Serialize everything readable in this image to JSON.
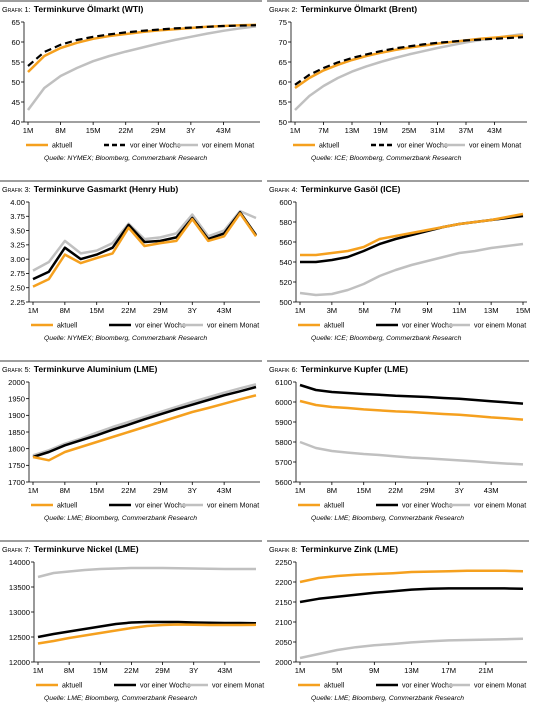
{
  "colors": {
    "aktuell": "#f5a01e",
    "vor_einer_woche": "#000000",
    "vor_einem_monat": "#c0c0c0",
    "rule": "#7f7f7f"
  },
  "charts": [
    {
      "id": "g1",
      "label": "Grafik 1:",
      "title": "Terminkurve Ölmarkt (WTI)",
      "source": "Quelle: NYMEX; Bloomberg, Commerzbank Research",
      "ylim": [
        40,
        65
      ],
      "yticks": [
        "40",
        "45",
        "50",
        "55",
        "60",
        "65"
      ],
      "xticks": [
        "1M",
        "8M",
        "15M",
        "22M",
        "29M",
        "3Y",
        "43M"
      ],
      "legend": [
        "aktuell",
        "vor einer Woche",
        "vor einem Monat"
      ]
    },
    {
      "id": "g2",
      "label": "Grafik 2:",
      "title": "Terminkurve Ölmarkt (Brent)",
      "source": "Quelle: ICE; Bloomberg, Commerzbank Research",
      "ylim": [
        50,
        75
      ],
      "yticks": [
        "50",
        "55",
        "60",
        "65",
        "70",
        "75"
      ],
      "xticks": [
        "1M",
        "7M",
        "13M",
        "19M",
        "25M",
        "31M",
        "37M",
        "43M"
      ],
      "legend": [
        "aktuell",
        "vor einer Woche",
        "vor einem Monat"
      ]
    },
    {
      "id": "g3",
      "label": "Grafik 3:",
      "title": "Terminkurve Gasmarkt (Henry Hub)",
      "source": "Quelle: NYMEX; Bloomberg, Commerzbank Research",
      "ylim": [
        2.25,
        4.0
      ],
      "yticks": [
        "2.25",
        "2.50",
        "2.75",
        "3.00",
        "3.25",
        "3.50",
        "3.75",
        "4.00"
      ],
      "xticks": [
        "1M",
        "8M",
        "15M",
        "22M",
        "29M",
        "3Y",
        "43M"
      ],
      "legend": [
        "aktuell",
        "vor einer Woche",
        "vor einem Monat"
      ]
    },
    {
      "id": "g4",
      "label": "Grafik 4:",
      "title": "Terminkurve Gasöl (ICE)",
      "source": "Quelle: ICE; Bloomberg, Commerzbank Research",
      "ylim": [
        500,
        600
      ],
      "yticks": [
        "500",
        "520",
        "540",
        "560",
        "580",
        "600"
      ],
      "xticks": [
        "1M",
        "3M",
        "5M",
        "7M",
        "9M",
        "11M",
        "13M",
        "15M"
      ],
      "legend": [
        "aktuell",
        "vor einer Woche",
        "vor einem Monat"
      ]
    },
    {
      "id": "g5",
      "label": "Grafik 5:",
      "title": "Terminkurve Aluminium (LME)",
      "source": "Quelle: LME; Bloomberg, Commerzbank Research",
      "ylim": [
        1700,
        2000
      ],
      "yticks": [
        "1700",
        "1750",
        "1800",
        "1850",
        "1900",
        "1950",
        "2000"
      ],
      "xticks": [
        "1M",
        "8M",
        "15M",
        "22M",
        "29M",
        "3Y",
        "43M"
      ],
      "legend": [
        "aktuell",
        "vor einer Woche",
        "vor einem Monat"
      ]
    },
    {
      "id": "g6",
      "label": "Grafik 6:",
      "title": "Terminkurve Kupfer (LME)",
      "source": "Quelle: LME; Bloomberg, Commerzbank Research",
      "ylim": [
        5600,
        6100
      ],
      "yticks": [
        "5600",
        "5700",
        "5800",
        "5900",
        "6000",
        "6100"
      ],
      "xticks": [
        "1M",
        "8M",
        "15M",
        "22M",
        "29M",
        "3Y",
        "43M"
      ],
      "legend": [
        "aktuell",
        "vor einer Woche",
        "vor einem Monat"
      ]
    },
    {
      "id": "g7",
      "label": "Grafik 7:",
      "title": "Terminkurve Nickel (LME)",
      "source": "Quelle: LME; Bloomberg, Commerzbank Research",
      "ylim": [
        12000,
        14000
      ],
      "yticks": [
        "12000",
        "12500",
        "13000",
        "13500",
        "14000"
      ],
      "xticks": [
        "1M",
        "8M",
        "15M",
        "22M",
        "29M",
        "3Y",
        "43M"
      ],
      "legend": [
        "aktuell",
        "vor einer Woche",
        "vor einem Monat"
      ]
    },
    {
      "id": "g8",
      "label": "Grafik 8:",
      "title": "Terminkurve Zink (LME)",
      "source": "Quelle: LME; Bloomberg, Commerzbank Research",
      "ylim": [
        2000,
        2250
      ],
      "yticks": [
        "2000",
        "2050",
        "2100",
        "2150",
        "2200",
        "2250"
      ],
      "xticks": [
        "1M",
        "5M",
        "9M",
        "13M",
        "17M",
        "21M"
      ],
      "legend": [
        "aktuell",
        "vor einer Woche",
        "vor einem Monat"
      ]
    }
  ],
  "chart_data": [
    {
      "type": "line",
      "title": "Grafik 1: Terminkurve Ölmarkt (WTI)",
      "ylim": [
        40,
        65
      ],
      "x": [
        "1M",
        "4M",
        "8M",
        "11M",
        "15M",
        "18M",
        "22M",
        "25M",
        "29M",
        "32M",
        "3Y",
        "39M",
        "43M",
        "46M",
        "49M"
      ],
      "series": [
        {
          "name": "aktuell",
          "values": [
            52.5,
            56.5,
            58.5,
            59.8,
            60.8,
            61.5,
            62.0,
            62.5,
            62.9,
            63.2,
            63.5,
            63.8,
            64.0,
            64.2,
            64.3
          ]
        },
        {
          "name": "vor einer Woche",
          "values": [
            54.0,
            57.5,
            59.3,
            60.5,
            61.3,
            61.9,
            62.4,
            62.8,
            63.1,
            63.4,
            63.6,
            63.8,
            64.0,
            64.1,
            64.2
          ]
        },
        {
          "name": "vor einem Monat",
          "values": [
            43.0,
            48.5,
            51.5,
            53.5,
            55.2,
            56.5,
            57.6,
            58.6,
            59.6,
            60.5,
            61.3,
            62.1,
            62.8,
            63.4,
            63.9
          ]
        }
      ]
    },
    {
      "type": "line",
      "title": "Grafik 2: Terminkurve Ölmarkt (Brent)",
      "ylim": [
        50,
        75
      ],
      "x": [
        "1M",
        "4M",
        "7M",
        "10M",
        "13M",
        "16M",
        "19M",
        "22M",
        "25M",
        "28M",
        "31M",
        "34M",
        "37M",
        "40M",
        "43M",
        "46M",
        "49M"
      ],
      "series": [
        {
          "name": "aktuell",
          "values": [
            58.5,
            61.0,
            62.9,
            64.3,
            65.5,
            66.5,
            67.3,
            68.0,
            68.6,
            69.1,
            69.6,
            70.0,
            70.4,
            70.8,
            71.1,
            71.4,
            71.6
          ]
        },
        {
          "name": "vor einer Woche",
          "values": [
            59.3,
            61.8,
            63.5,
            64.9,
            66.0,
            66.9,
            67.7,
            68.4,
            68.9,
            69.4,
            69.8,
            70.1,
            70.4,
            70.6,
            70.8,
            71.0,
            71.2
          ]
        },
        {
          "name": "vor einem Monat",
          "values": [
            53.0,
            56.5,
            59.0,
            61.0,
            62.6,
            63.9,
            65.0,
            66.0,
            66.9,
            67.7,
            68.5,
            69.2,
            69.9,
            70.5,
            71.0,
            71.5,
            72.0
          ]
        }
      ]
    },
    {
      "type": "line",
      "title": "Grafik 3: Terminkurve Gasmarkt (Henry Hub)",
      "ylim": [
        2.25,
        4.0
      ],
      "x": [
        "1M",
        "4M",
        "8M",
        "11M",
        "15M",
        "18M",
        "22M",
        "25M",
        "29M",
        "32M",
        "3Y",
        "39M",
        "43M",
        "46M",
        "49M"
      ],
      "series": [
        {
          "name": "aktuell",
          "values": [
            2.52,
            2.65,
            3.08,
            2.93,
            3.02,
            3.1,
            3.55,
            3.23,
            3.28,
            3.32,
            3.7,
            3.32,
            3.4,
            3.8,
            3.4
          ]
        },
        {
          "name": "vor einer Woche",
          "values": [
            2.65,
            2.78,
            3.2,
            3.0,
            3.08,
            3.2,
            3.6,
            3.3,
            3.32,
            3.38,
            3.72,
            3.35,
            3.45,
            3.82,
            3.42
          ]
        },
        {
          "name": "vor einem Monat",
          "values": [
            2.8,
            2.95,
            3.32,
            3.1,
            3.15,
            3.28,
            3.62,
            3.35,
            3.38,
            3.45,
            3.78,
            3.4,
            3.5,
            3.84,
            3.72
          ]
        }
      ]
    },
    {
      "type": "line",
      "title": "Grafik 4: Terminkurve Gasöl (ICE)",
      "ylim": [
        500,
        600
      ],
      "x": [
        "1M",
        "2M",
        "3M",
        "4M",
        "5M",
        "6M",
        "7M",
        "8M",
        "9M",
        "10M",
        "11M",
        "12M",
        "13M",
        "14M",
        "15M"
      ],
      "series": [
        {
          "name": "aktuell",
          "values": [
            547,
            547,
            549,
            551,
            555,
            563,
            566,
            569,
            572,
            575,
            578,
            580,
            582,
            585,
            588
          ]
        },
        {
          "name": "vor einer Woche",
          "values": [
            540,
            540,
            542,
            545,
            551,
            558,
            563,
            567,
            571,
            575,
            578,
            580,
            582,
            584,
            586
          ]
        },
        {
          "name": "vor einem Monat",
          "values": [
            509,
            507,
            508,
            512,
            518,
            526,
            532,
            537,
            541,
            545,
            549,
            551,
            554,
            556,
            558
          ]
        }
      ]
    },
    {
      "type": "line",
      "title": "Grafik 5: Terminkurve Aluminium (LME)",
      "ylim": [
        1700,
        2000
      ],
      "x": [
        "1M",
        "4M",
        "8M",
        "11M",
        "15M",
        "18M",
        "22M",
        "25M",
        "29M",
        "32M",
        "3Y",
        "39M",
        "43M",
        "46M",
        "49M"
      ],
      "series": [
        {
          "name": "aktuell",
          "values": [
            1775,
            1765,
            1790,
            1805,
            1820,
            1835,
            1850,
            1865,
            1880,
            1895,
            1910,
            1922,
            1935,
            1948,
            1960
          ]
        },
        {
          "name": "vor einer Woche",
          "values": [
            1775,
            1790,
            1810,
            1825,
            1840,
            1857,
            1872,
            1888,
            1903,
            1918,
            1932,
            1946,
            1960,
            1972,
            1985
          ]
        },
        {
          "name": "vor einem Monat",
          "values": [
            1780,
            1795,
            1815,
            1830,
            1848,
            1865,
            1880,
            1895,
            1910,
            1925,
            1940,
            1954,
            1968,
            1981,
            1993
          ]
        }
      ]
    },
    {
      "type": "line",
      "title": "Grafik 6: Terminkurve Kupfer (LME)",
      "ylim": [
        5600,
        6100
      ],
      "x": [
        "1M",
        "4M",
        "8M",
        "11M",
        "15M",
        "18M",
        "22M",
        "25M",
        "29M",
        "32M",
        "3Y",
        "39M",
        "43M",
        "46M",
        "49M"
      ],
      "series": [
        {
          "name": "aktuell",
          "values": [
            6005,
            5985,
            5975,
            5970,
            5963,
            5958,
            5953,
            5950,
            5945,
            5940,
            5936,
            5930,
            5923,
            5918,
            5912
          ]
        },
        {
          "name": "vor einer Woche",
          "values": [
            6085,
            6060,
            6050,
            6045,
            6040,
            6036,
            6031,
            6028,
            6025,
            6020,
            6016,
            6010,
            6004,
            5998,
            5992
          ]
        },
        {
          "name": "vor einem Monat",
          "values": [
            5800,
            5770,
            5755,
            5747,
            5740,
            5735,
            5728,
            5722,
            5718,
            5713,
            5708,
            5703,
            5697,
            5692,
            5688
          ]
        }
      ]
    },
    {
      "type": "line",
      "title": "Grafik 7: Terminkurve Nickel (LME)",
      "ylim": [
        12000,
        14000
      ],
      "x": [
        "1M",
        "4M",
        "8M",
        "11M",
        "15M",
        "18M",
        "22M",
        "25M",
        "29M",
        "32M",
        "3Y",
        "39M",
        "43M",
        "46M",
        "49M"
      ],
      "series": [
        {
          "name": "aktuell",
          "values": [
            12370,
            12420,
            12480,
            12530,
            12580,
            12630,
            12680,
            12720,
            12740,
            12750,
            12745,
            12740,
            12740,
            12740,
            12745
          ]
        },
        {
          "name": "vor einer Woche",
          "values": [
            12500,
            12560,
            12610,
            12660,
            12710,
            12760,
            12790,
            12800,
            12800,
            12800,
            12790,
            12785,
            12780,
            12780,
            12775
          ]
        },
        {
          "name": "vor einem Monat",
          "values": [
            13700,
            13780,
            13810,
            13840,
            13860,
            13870,
            13880,
            13880,
            13880,
            13875,
            13870,
            13865,
            13860,
            13860,
            13860
          ]
        }
      ]
    },
    {
      "type": "line",
      "title": "Grafik 8: Terminkurve Zink (LME)",
      "ylim": [
        2000,
        2250
      ],
      "x": [
        "1M",
        "3M",
        "5M",
        "7M",
        "9M",
        "11M",
        "13M",
        "15M",
        "17M",
        "19M",
        "21M",
        "23M",
        "25M"
      ],
      "series": [
        {
          "name": "aktuell",
          "values": [
            2200,
            2210,
            2215,
            2218,
            2220,
            2222,
            2225,
            2226,
            2227,
            2228,
            2228,
            2228,
            2227
          ]
        },
        {
          "name": "vor einer Woche",
          "values": [
            2150,
            2158,
            2163,
            2168,
            2173,
            2177,
            2181,
            2183,
            2184,
            2184,
            2184,
            2184,
            2183
          ]
        },
        {
          "name": "vor einem Monat",
          "values": [
            2010,
            2020,
            2030,
            2037,
            2042,
            2045,
            2049,
            2052,
            2054,
            2055,
            2056,
            2057,
            2058
          ]
        }
      ]
    }
  ]
}
